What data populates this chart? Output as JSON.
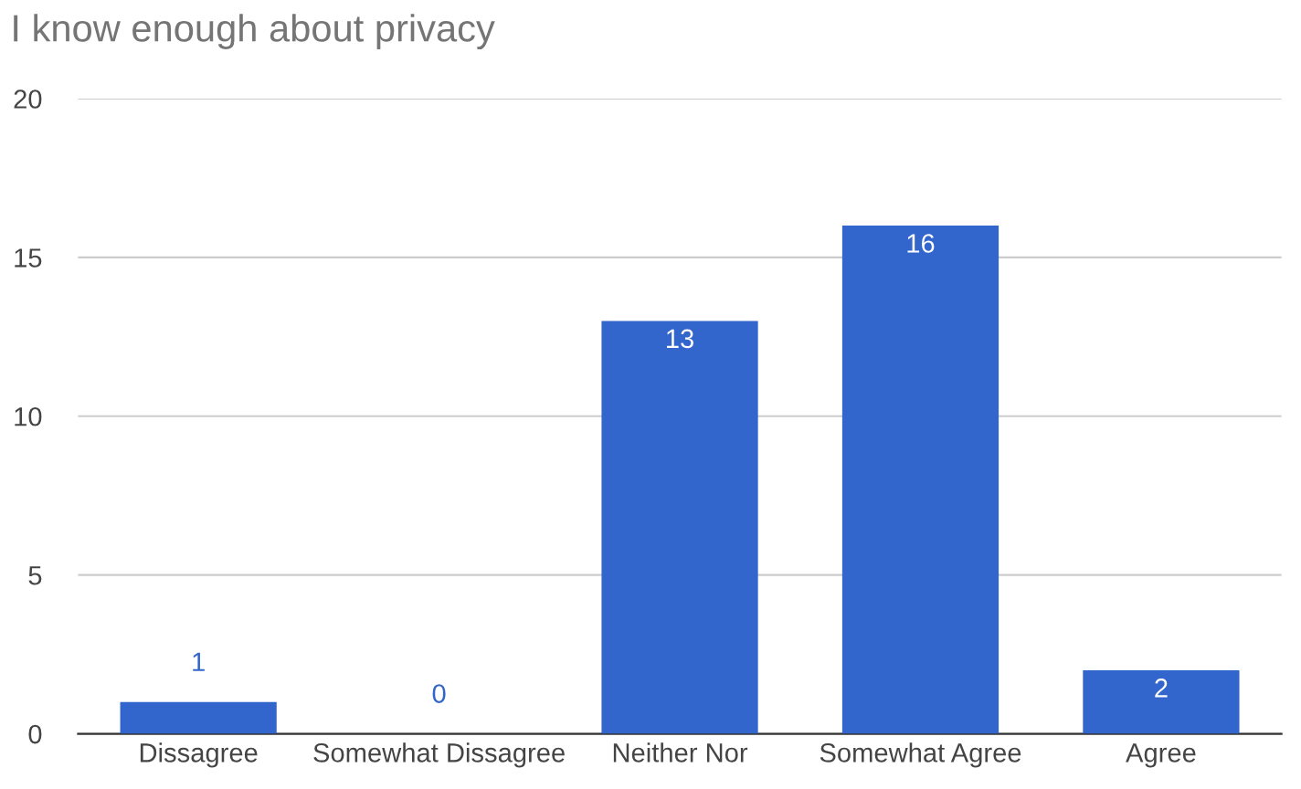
{
  "chart_data": {
    "type": "bar",
    "title": "I know enough about privacy",
    "categories": [
      "Dissagree",
      "Somewhat Dissagree",
      "Neither Nor",
      "Somewhat Agree",
      "Agree"
    ],
    "values": [
      1,
      0,
      13,
      16,
      2
    ],
    "color": "#3366cc",
    "ylim": [
      0,
      20
    ],
    "yticks": [
      0,
      5,
      10,
      15,
      20
    ],
    "grid": "y",
    "data_labels": true
  }
}
